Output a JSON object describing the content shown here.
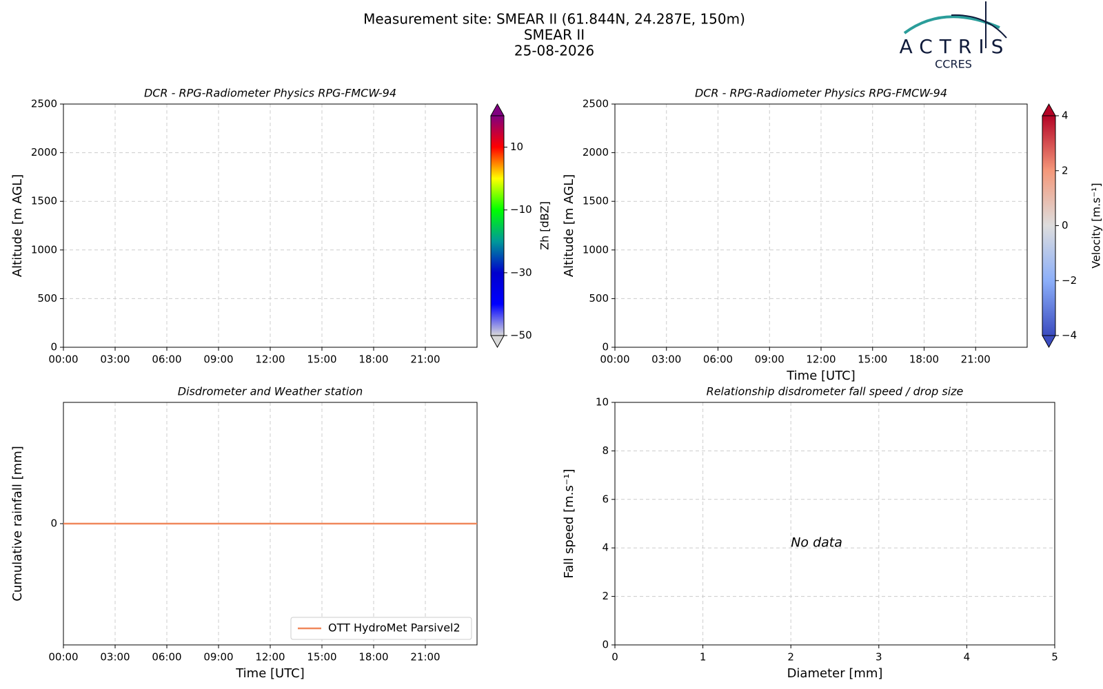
{
  "header": {
    "title_lines": [
      "Measurement site: SMEAR II (61.844N, 24.287E, 150m)",
      "SMEAR II",
      "25-08-2026"
    ],
    "logo": {
      "name": "ACTRIS",
      "subname": "CCRES"
    }
  },
  "chart_data": [
    {
      "type": "heatmap",
      "title": "DCR - RPG-Radiometer Physics RPG-FMCW-94",
      "ylabel": "Altitude [m AGL]",
      "xlim": [
        0,
        24
      ],
      "xticks": [
        {
          "value": 0,
          "label": "00:00"
        },
        {
          "value": 3,
          "label": "03:00"
        },
        {
          "value": 6,
          "label": "06:00"
        },
        {
          "value": 9,
          "label": "09:00"
        },
        {
          "value": 12,
          "label": "12:00"
        },
        {
          "value": 15,
          "label": "15:00"
        },
        {
          "value": 18,
          "label": "18:00"
        },
        {
          "value": 21,
          "label": "21:00"
        }
      ],
      "ylim": [
        0,
        2500
      ],
      "yticks": [
        0,
        500,
        1000,
        1500,
        2000,
        2500
      ],
      "grid": true,
      "colorbar": {
        "label": "Zh [dBZ]",
        "lim": [
          -50,
          20
        ],
        "ticks": [
          {
            "value": -50,
            "label": "−50"
          },
          {
            "value": -30,
            "label": "−30"
          },
          {
            "value": -10,
            "label": "−10"
          },
          10
        ],
        "colors": [
          "#d9d9d9",
          "#0000ff",
          "#0000cc",
          "#009999",
          "#00ff00",
          "#ffff00",
          "#ff0000",
          "#800080"
        ]
      }
    },
    {
      "type": "heatmap",
      "title": "DCR - RPG-Radiometer Physics RPG-FMCW-94",
      "ylabel": "Altitude [m AGL]",
      "xlabel": "Time [UTC]",
      "xlim": [
        0,
        24
      ],
      "xticks": [
        {
          "value": 0,
          "label": "00:00"
        },
        {
          "value": 3,
          "label": "03:00"
        },
        {
          "value": 6,
          "label": "06:00"
        },
        {
          "value": 9,
          "label": "09:00"
        },
        {
          "value": 12,
          "label": "12:00"
        },
        {
          "value": 15,
          "label": "15:00"
        },
        {
          "value": 18,
          "label": "18:00"
        },
        {
          "value": 21,
          "label": "21:00"
        }
      ],
      "ylim": [
        0,
        2500
      ],
      "yticks": [
        0,
        500,
        1000,
        1500,
        2000,
        2500
      ],
      "grid": true,
      "colorbar": {
        "label": "Velocity [m.s⁻¹]",
        "lim": [
          -4,
          4
        ],
        "ticks": [
          {
            "value": -4,
            "label": "−4"
          },
          {
            "value": -2,
            "label": "−2"
          },
          0,
          2,
          4
        ],
        "colors": [
          "#3b4cc0",
          "#8caff9",
          "#dddddd",
          "#f4987a",
          "#b40426"
        ]
      }
    },
    {
      "type": "line",
      "title": "Disdrometer and Weather station",
      "ylabel": "Cumulative rainfall [mm]",
      "xlabel": "Time [UTC]",
      "x": [
        0,
        24
      ],
      "series": [
        {
          "name": "OTT HydroMet Parsivel2",
          "color": "#f0875a",
          "values": [
            0,
            0
          ]
        }
      ],
      "xlim": [
        0,
        24
      ],
      "xticks": [
        {
          "value": 0,
          "label": "00:00"
        },
        {
          "value": 3,
          "label": "03:00"
        },
        {
          "value": 6,
          "label": "06:00"
        },
        {
          "value": 9,
          "label": "09:00"
        },
        {
          "value": 12,
          "label": "12:00"
        },
        {
          "value": 15,
          "label": "15:00"
        },
        {
          "value": 18,
          "label": "18:00"
        },
        {
          "value": 21,
          "label": "21:00"
        }
      ],
      "ylim": [
        -0.055,
        0.055
      ],
      "yticks": [
        0
      ],
      "grid": true,
      "legend": "lower right"
    },
    {
      "type": "scatter",
      "title": "Relationship disdrometer fall speed / drop size",
      "ylabel": "Fall speed [m.s⁻¹]",
      "xlabel": "Diameter [mm]",
      "annotation": "No data",
      "xlim": [
        0,
        5
      ],
      "xticks": [
        0,
        1,
        2,
        3,
        4,
        5
      ],
      "ylim": [
        0,
        10
      ],
      "yticks": [
        0,
        2,
        4,
        6,
        8,
        10
      ],
      "grid": true
    }
  ]
}
